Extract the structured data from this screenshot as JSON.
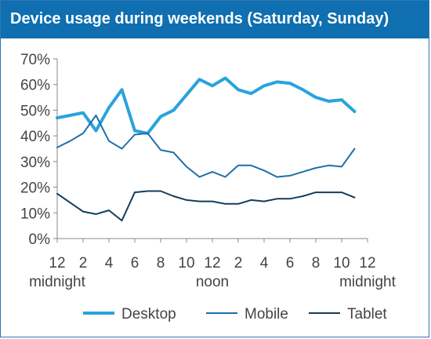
{
  "title": "Device usage during weekends (Saturday, Sunday)",
  "colors": {
    "header_bg": "#0f6fb0",
    "Desktop": "#29a3dd",
    "Mobile": "#1f6fa8",
    "Tablet": "#123d5e"
  },
  "chart_data": {
    "type": "line",
    "title": "Device usage during weekends (Saturday, Sunday)",
    "x_hours": [
      0,
      1,
      2,
      3,
      4,
      5,
      6,
      7,
      8,
      9,
      10,
      11,
      12,
      13,
      14,
      15,
      16,
      17,
      18,
      19,
      20,
      21,
      22,
      23
    ],
    "x_tick_values": [
      0,
      2,
      4,
      6,
      8,
      10,
      12,
      14,
      16,
      18,
      20,
      22,
      24
    ],
    "x_tick_labels": [
      "12",
      "2",
      "4",
      "6",
      "8",
      "10",
      "12",
      "2",
      "4",
      "6",
      "8",
      "10",
      "12"
    ],
    "x_sublabels": [
      {
        "at": 0,
        "text": "midnight"
      },
      {
        "at": 12,
        "text": "noon"
      },
      {
        "at": 24,
        "text": "midnight"
      }
    ],
    "ylim": [
      0,
      70
    ],
    "y_ticks": [
      0,
      10,
      20,
      30,
      40,
      50,
      60,
      70
    ],
    "y_tick_labels": [
      "0%",
      "10%",
      "20%",
      "30%",
      "40%",
      "50%",
      "60%",
      "70%"
    ],
    "grid": false,
    "legend_position": "bottom",
    "series": [
      {
        "name": "Desktop",
        "values": [
          47,
          48,
          49,
          42,
          51,
          58,
          42,
          41,
          47.5,
          50,
          56,
          62,
          59.5,
          62.5,
          58,
          56.5,
          59.5,
          61,
          60.5,
          58,
          55,
          53.5,
          54,
          49.5
        ]
      },
      {
        "name": "Mobile",
        "values": [
          35.5,
          38,
          41,
          48,
          38,
          35,
          40.5,
          41,
          34.5,
          33.5,
          28,
          24,
          26,
          24,
          28.5,
          28.5,
          26.5,
          24,
          24.5,
          26,
          27.5,
          28.5,
          28,
          35
        ]
      },
      {
        "name": "Tablet",
        "values": [
          17.5,
          14,
          10.5,
          9.5,
          11,
          7,
          18,
          18.5,
          18.5,
          16.5,
          15,
          14.5,
          14.5,
          13.5,
          13.5,
          15,
          14.5,
          15.5,
          15.5,
          16.5,
          18,
          18,
          18,
          16
        ]
      }
    ]
  },
  "legend": [
    {
      "name": "Desktop",
      "label": "Desktop"
    },
    {
      "name": "Mobile",
      "label": "Mobile"
    },
    {
      "name": "Tablet",
      "label": "Tablet"
    }
  ]
}
